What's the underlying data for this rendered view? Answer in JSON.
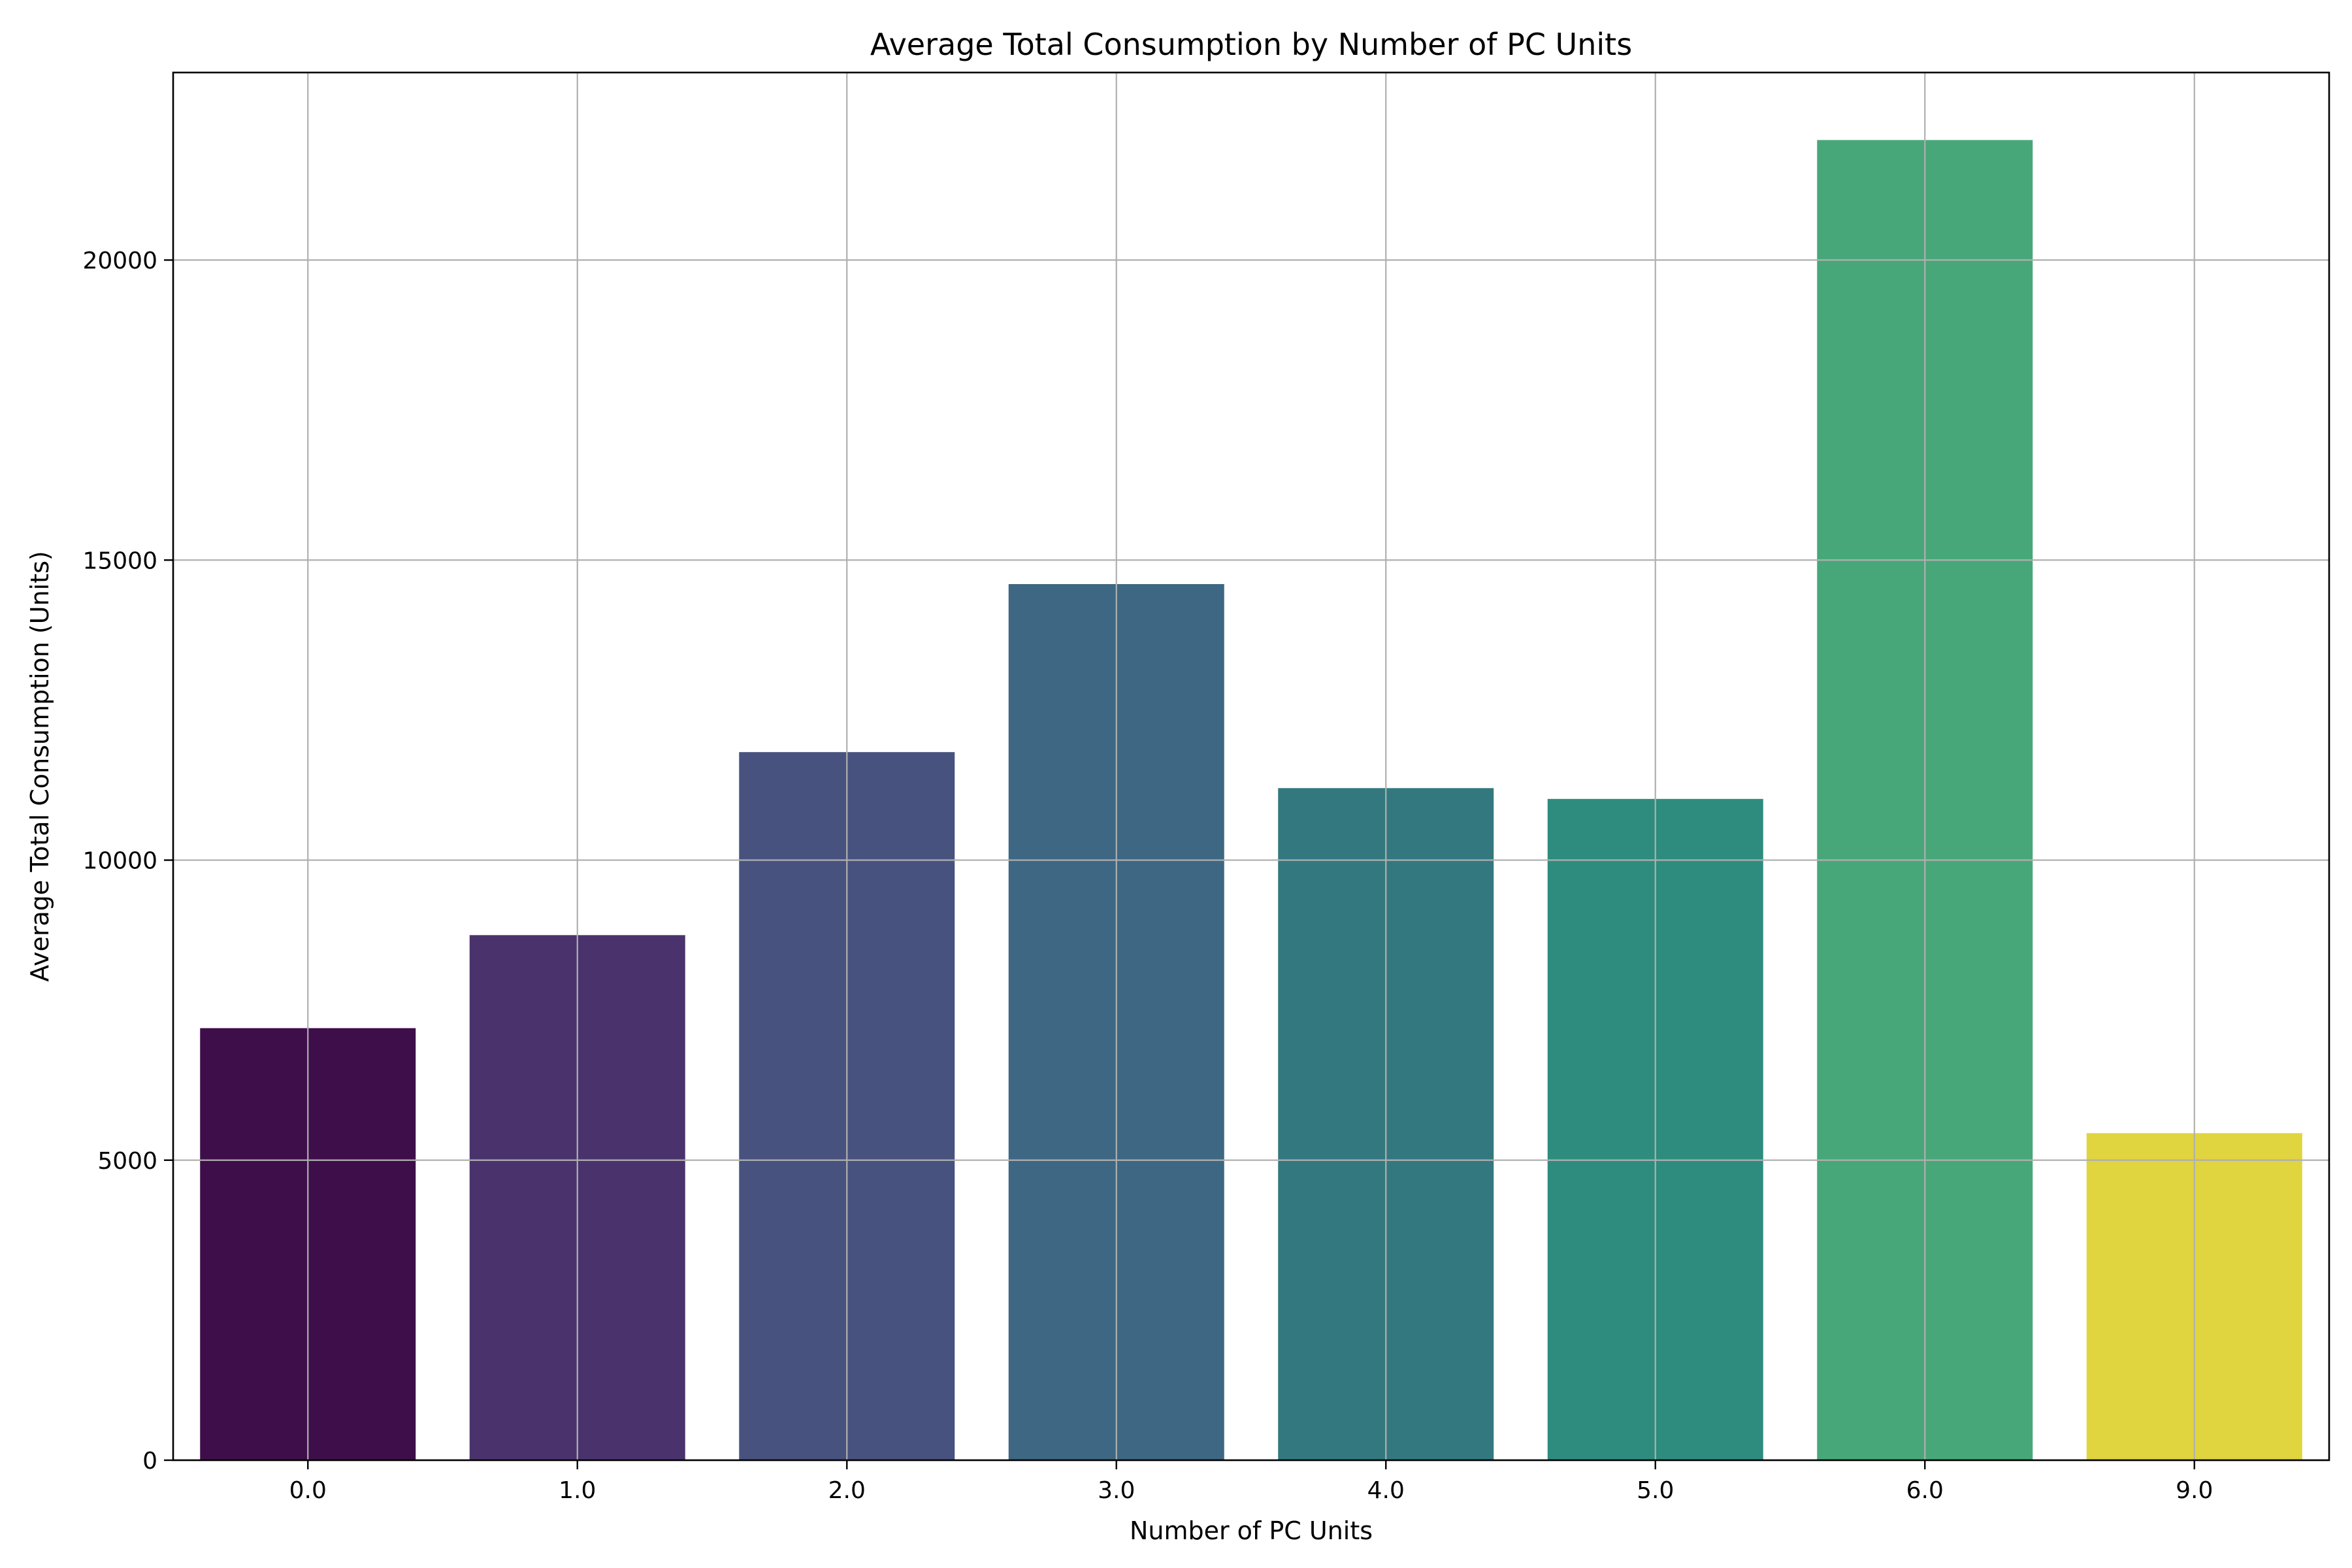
{
  "chart_data": {
    "type": "bar",
    "title": "Average Total Consumption by Number of PC Units",
    "xlabel": "Number of PC Units",
    "ylabel": "Average Total Consumption (Units)",
    "categories": [
      "0.0",
      "1.0",
      "2.0",
      "3.0",
      "4.0",
      "5.0",
      "6.0",
      "9.0"
    ],
    "values": [
      7200,
      8750,
      11800,
      14600,
      11200,
      11020,
      22000,
      5450
    ],
    "colors": [
      "#3e0e4a",
      "#4a336d",
      "#48527e",
      "#3d6782",
      "#33787f",
      "#2d8c7e",
      "#48a779",
      "#e0d43f"
    ],
    "ylim": [
      0,
      23125
    ],
    "yticks": [
      0,
      5000,
      10000,
      15000,
      20000
    ],
    "ytick_labels": [
      "0",
      "5000",
      "10000",
      "15000",
      "20000"
    ],
    "grid": true,
    "legend": "none"
  }
}
